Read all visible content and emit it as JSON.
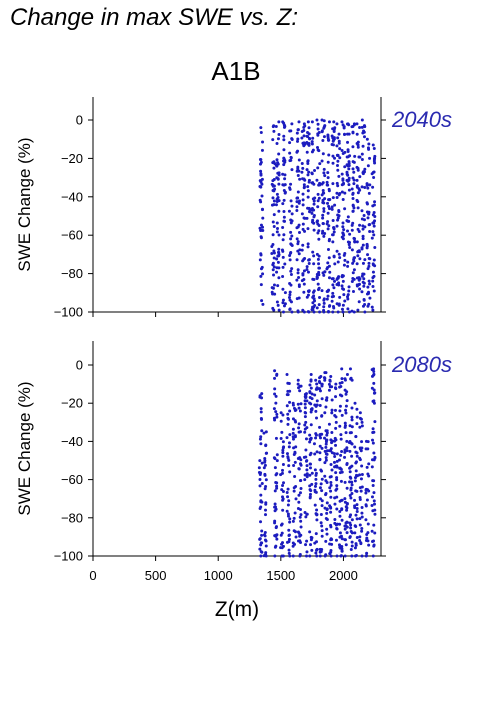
{
  "page": {
    "title": "Change in max SWE vs. Z:",
    "scenario": "A1B"
  },
  "colors": {
    "points": "#1c1cbf",
    "period_label": "#2a2ab0",
    "axis": "#000000"
  },
  "chart_data": [
    {
      "type": "scatter",
      "title": "",
      "xlabel": "",
      "ylabel": "SWE Change (%)",
      "xlim": [
        0,
        2300
      ],
      "ylim": [
        -100,
        13
      ],
      "yticks": [
        0,
        -20,
        -40,
        -60,
        -80,
        -100
      ],
      "ytick_labels": [
        "0",
        "−20",
        "−40",
        "−60",
        "−80",
        "−100"
      ],
      "xticks": [
        0,
        500,
        1000,
        1500,
        2000
      ],
      "xtick_labels": [],
      "period_label": "2040s",
      "grid": false,
      "series": [
        {
          "columns": [
            {
              "x": 1345,
              "top": -4,
              "bottom": -96
            },
            {
              "x": 1440,
              "top": -3,
              "bottom": -99
            },
            {
              "x": 1475,
              "top": -1,
              "bottom": -99
            },
            {
              "x": 1525,
              "top": -1,
              "bottom": -100
            },
            {
              "x": 1580,
              "top": -2,
              "bottom": -100
            },
            {
              "x": 1640,
              "top": -1,
              "bottom": -100
            },
            {
              "x": 1680,
              "top": -2,
              "bottom": -100
            },
            {
              "x": 1720,
              "top": -1,
              "bottom": -100
            },
            {
              "x": 1760,
              "top": -1,
              "bottom": -100
            },
            {
              "x": 1800,
              "top": 0,
              "bottom": -100
            },
            {
              "x": 1840,
              "top": 0,
              "bottom": -100
            },
            {
              "x": 1880,
              "top": -1,
              "bottom": -100
            },
            {
              "x": 1920,
              "top": -1,
              "bottom": -100
            },
            {
              "x": 1960,
              "top": -2,
              "bottom": -100
            },
            {
              "x": 2000,
              "top": -1,
              "bottom": -100
            },
            {
              "x": 2040,
              "top": -2,
              "bottom": -100
            },
            {
              "x": 2080,
              "top": -2,
              "bottom": -100
            },
            {
              "x": 2120,
              "top": -2,
              "bottom": -99
            },
            {
              "x": 2160,
              "top": 0,
              "bottom": -100
            },
            {
              "x": 2200,
              "top": -10,
              "bottom": -97
            },
            {
              "x": 2240,
              "top": -13,
              "bottom": -99
            }
          ]
        }
      ]
    },
    {
      "type": "scatter",
      "title": "",
      "xlabel": "Z(m)",
      "ylabel": "SWE Change (%)",
      "xlim": [
        0,
        2300
      ],
      "ylim": [
        -100,
        13
      ],
      "yticks": [
        0,
        -20,
        -40,
        -60,
        -80,
        -100
      ],
      "ytick_labels": [
        "0",
        "−20",
        "−40",
        "−60",
        "−80",
        "−100"
      ],
      "xticks": [
        0,
        500,
        1000,
        1500,
        2000
      ],
      "xtick_labels": [
        "0",
        "500",
        "1000",
        "1500",
        "2000"
      ],
      "period_label": "2080s",
      "grid": false,
      "series": [
        {
          "columns": [
            {
              "x": 1340,
              "top": -15,
              "bottom": -100
            },
            {
              "x": 1375,
              "top": -35,
              "bottom": -100
            },
            {
              "x": 1460,
              "top": -3,
              "bottom": -100
            },
            {
              "x": 1510,
              "top": -25,
              "bottom": -100
            },
            {
              "x": 1560,
              "top": -5,
              "bottom": -100
            },
            {
              "x": 1610,
              "top": -20,
              "bottom": -100
            },
            {
              "x": 1650,
              "top": -8,
              "bottom": -100
            },
            {
              "x": 1700,
              "top": -15,
              "bottom": -100
            },
            {
              "x": 1740,
              "top": -5,
              "bottom": -100
            },
            {
              "x": 1780,
              "top": -8,
              "bottom": -100
            },
            {
              "x": 1820,
              "top": -6,
              "bottom": -100
            },
            {
              "x": 1860,
              "top": -4,
              "bottom": -100
            },
            {
              "x": 1900,
              "top": -6,
              "bottom": -100
            },
            {
              "x": 1940,
              "top": -10,
              "bottom": -100
            },
            {
              "x": 1980,
              "top": -2,
              "bottom": -100
            },
            {
              "x": 2020,
              "top": -5,
              "bottom": -100
            },
            {
              "x": 2060,
              "top": -2,
              "bottom": -100
            },
            {
              "x": 2100,
              "top": -20,
              "bottom": -100
            },
            {
              "x": 2140,
              "top": -25,
              "bottom": -100
            },
            {
              "x": 2190,
              "top": -40,
              "bottom": -100
            },
            {
              "x": 2240,
              "top": -2,
              "bottom": -100
            }
          ]
        }
      ]
    }
  ]
}
